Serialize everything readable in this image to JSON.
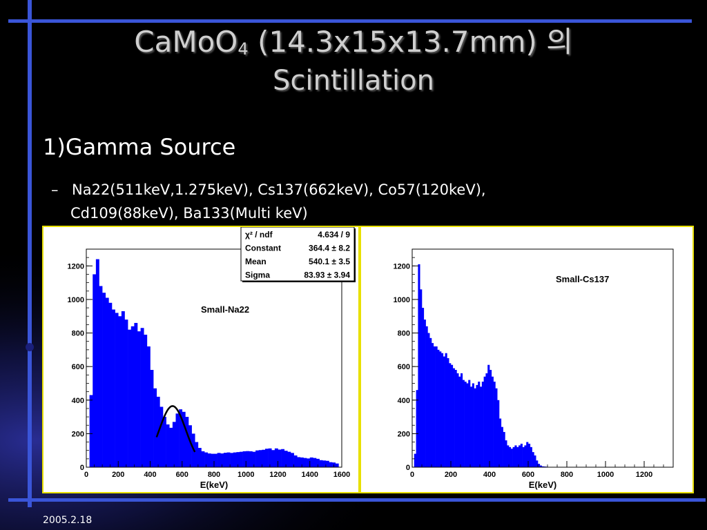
{
  "slide": {
    "title_main": "CaMoO",
    "title_sub": "4",
    "title_rest": " (14.3x15x13.7mm) 의",
    "title_line2": "Scintillation",
    "heading": "1)Gamma Source",
    "bullet_dash": "–",
    "bullet_line1": "Na22(511keV,1.275keV), Cs137(662keV), Co57(120keV),",
    "bullet_line2": "Cd109(88keV), Ba133(Multi keV)",
    "date": "2005.2.18"
  },
  "colors": {
    "background": "#000000",
    "accent_line": "#3a55d8",
    "histogram_fill": "#0000ff",
    "fit_line": "#000000",
    "panel_border": "#e8e000"
  },
  "chart_data": [
    {
      "type": "bar",
      "title": "Small-Na22",
      "xlabel": "E(keV)",
      "ylabel": "",
      "xlim": [
        0,
        1600
      ],
      "ylim": [
        0,
        1300
      ],
      "x_ticks": [
        "0",
        "200",
        "400",
        "600",
        "800",
        "1000",
        "1200",
        "1400",
        "1600"
      ],
      "y_ticks": [
        "0",
        "200",
        "400",
        "600",
        "800",
        "1000",
        "1200"
      ],
      "bin_width": 20,
      "x_start": 0,
      "values": [
        0,
        430,
        1150,
        1240,
        1080,
        1040,
        1010,
        980,
        940,
        920,
        900,
        930,
        880,
        820,
        840,
        860,
        810,
        830,
        790,
        720,
        580,
        470,
        420,
        360,
        300,
        255,
        235,
        270,
        320,
        345,
        330,
        300,
        250,
        200,
        150,
        115,
        95,
        88,
        82,
        80,
        80,
        85,
        82,
        86,
        88,
        85,
        88,
        90,
        92,
        95,
        96,
        95,
        92,
        100,
        102,
        104,
        110,
        112,
        102,
        112,
        105,
        108,
        98,
        92,
        85,
        70,
        60,
        58,
        55,
        52,
        58,
        55,
        50,
        42,
        40,
        38,
        30,
        28,
        22,
        0
      ],
      "fit": {
        "name": "gaussian",
        "x_range": [
          440,
          680
        ],
        "stats": [
          {
            "label": "χ² / ndf",
            "value": "4.634 / 9"
          },
          {
            "label": "Constant",
            "value": "364.4 ± 8.2"
          },
          {
            "label": "Mean",
            "value": "540.1 ± 3.5"
          },
          {
            "label": "Sigma",
            "value": "83.93 ± 3.94"
          }
        ],
        "constant": 364.4,
        "mean": 540.1,
        "sigma": 83.93,
        "baseline": 0
      }
    },
    {
      "type": "bar",
      "title": "Small-Cs137",
      "xlabel": "E(keV)",
      "ylabel": "",
      "xlim": [
        0,
        1350
      ],
      "ylim": [
        0,
        1300
      ],
      "x_ticks": [
        "0",
        "200",
        "400",
        "600",
        "800",
        "1000",
        "1200"
      ],
      "y_ticks": [
        "0",
        "200",
        "400",
        "600",
        "800",
        "1000",
        "1200"
      ],
      "bin_width": 10,
      "x_start": 0,
      "values": [
        0,
        80,
        460,
        1210,
        1060,
        950,
        880,
        840,
        800,
        770,
        740,
        720,
        720,
        700,
        690,
        680,
        660,
        680,
        650,
        620,
        610,
        590,
        580,
        560,
        540,
        560,
        520,
        510,
        500,
        520,
        480,
        500,
        470,
        490,
        510,
        480,
        510,
        540,
        560,
        610,
        580,
        540,
        510,
        470,
        400,
        290,
        240,
        210,
        160,
        130,
        120,
        110,
        120,
        130,
        120,
        130,
        140,
        120,
        130,
        150,
        140,
        120,
        90,
        70,
        40,
        20,
        10,
        5,
        4,
        3,
        2,
        2,
        1,
        1,
        1,
        0,
        0,
        0,
        0,
        0,
        0,
        0,
        0,
        0,
        0,
        0,
        0,
        0,
        0,
        0,
        0,
        0,
        0,
        0,
        0,
        0,
        0,
        0,
        0,
        0,
        0,
        0,
        0,
        0,
        0,
        0,
        0,
        0,
        0,
        0,
        0,
        0,
        0,
        0,
        0,
        0,
        0,
        0,
        0,
        0,
        0,
        0,
        0,
        0,
        0,
        0,
        0,
        0,
        0,
        0,
        0,
        0,
        0,
        0,
        0
      ]
    }
  ]
}
